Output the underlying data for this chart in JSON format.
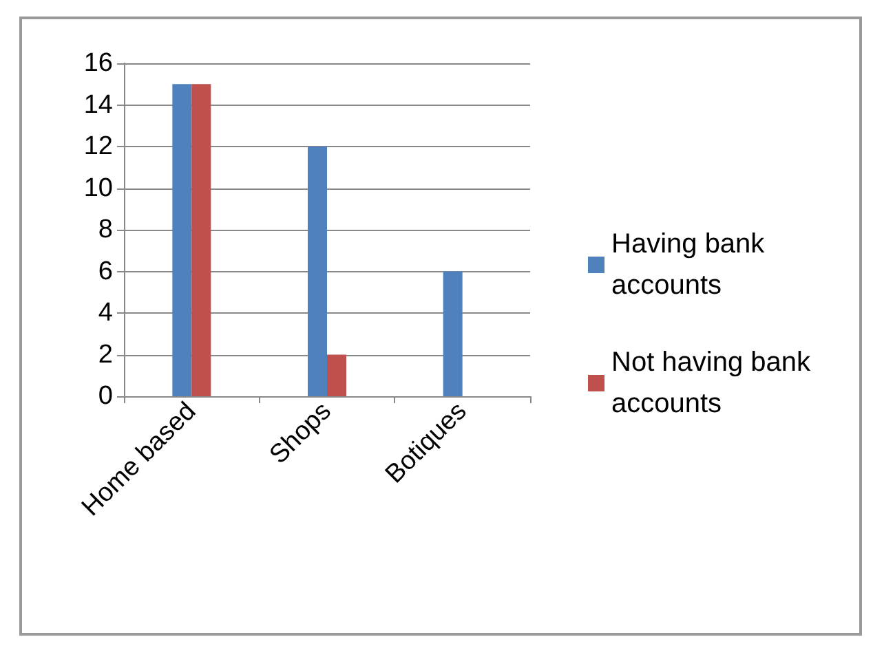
{
  "chart_data": {
    "type": "bar",
    "categories": [
      "Home based",
      "Shops",
      "Botiques"
    ],
    "series": [
      {
        "name": "Having bank accounts",
        "color": "#4f81bd",
        "values": [
          15,
          12,
          6
        ]
      },
      {
        "name": "Not having bank accounts",
        "color": "#c0504d",
        "values": [
          15,
          2,
          0
        ]
      }
    ],
    "ylim": [
      0,
      16
    ],
    "yticks": [
      0,
      2,
      4,
      6,
      8,
      10,
      12,
      14,
      16
    ],
    "grid": "y",
    "legend": "right"
  }
}
